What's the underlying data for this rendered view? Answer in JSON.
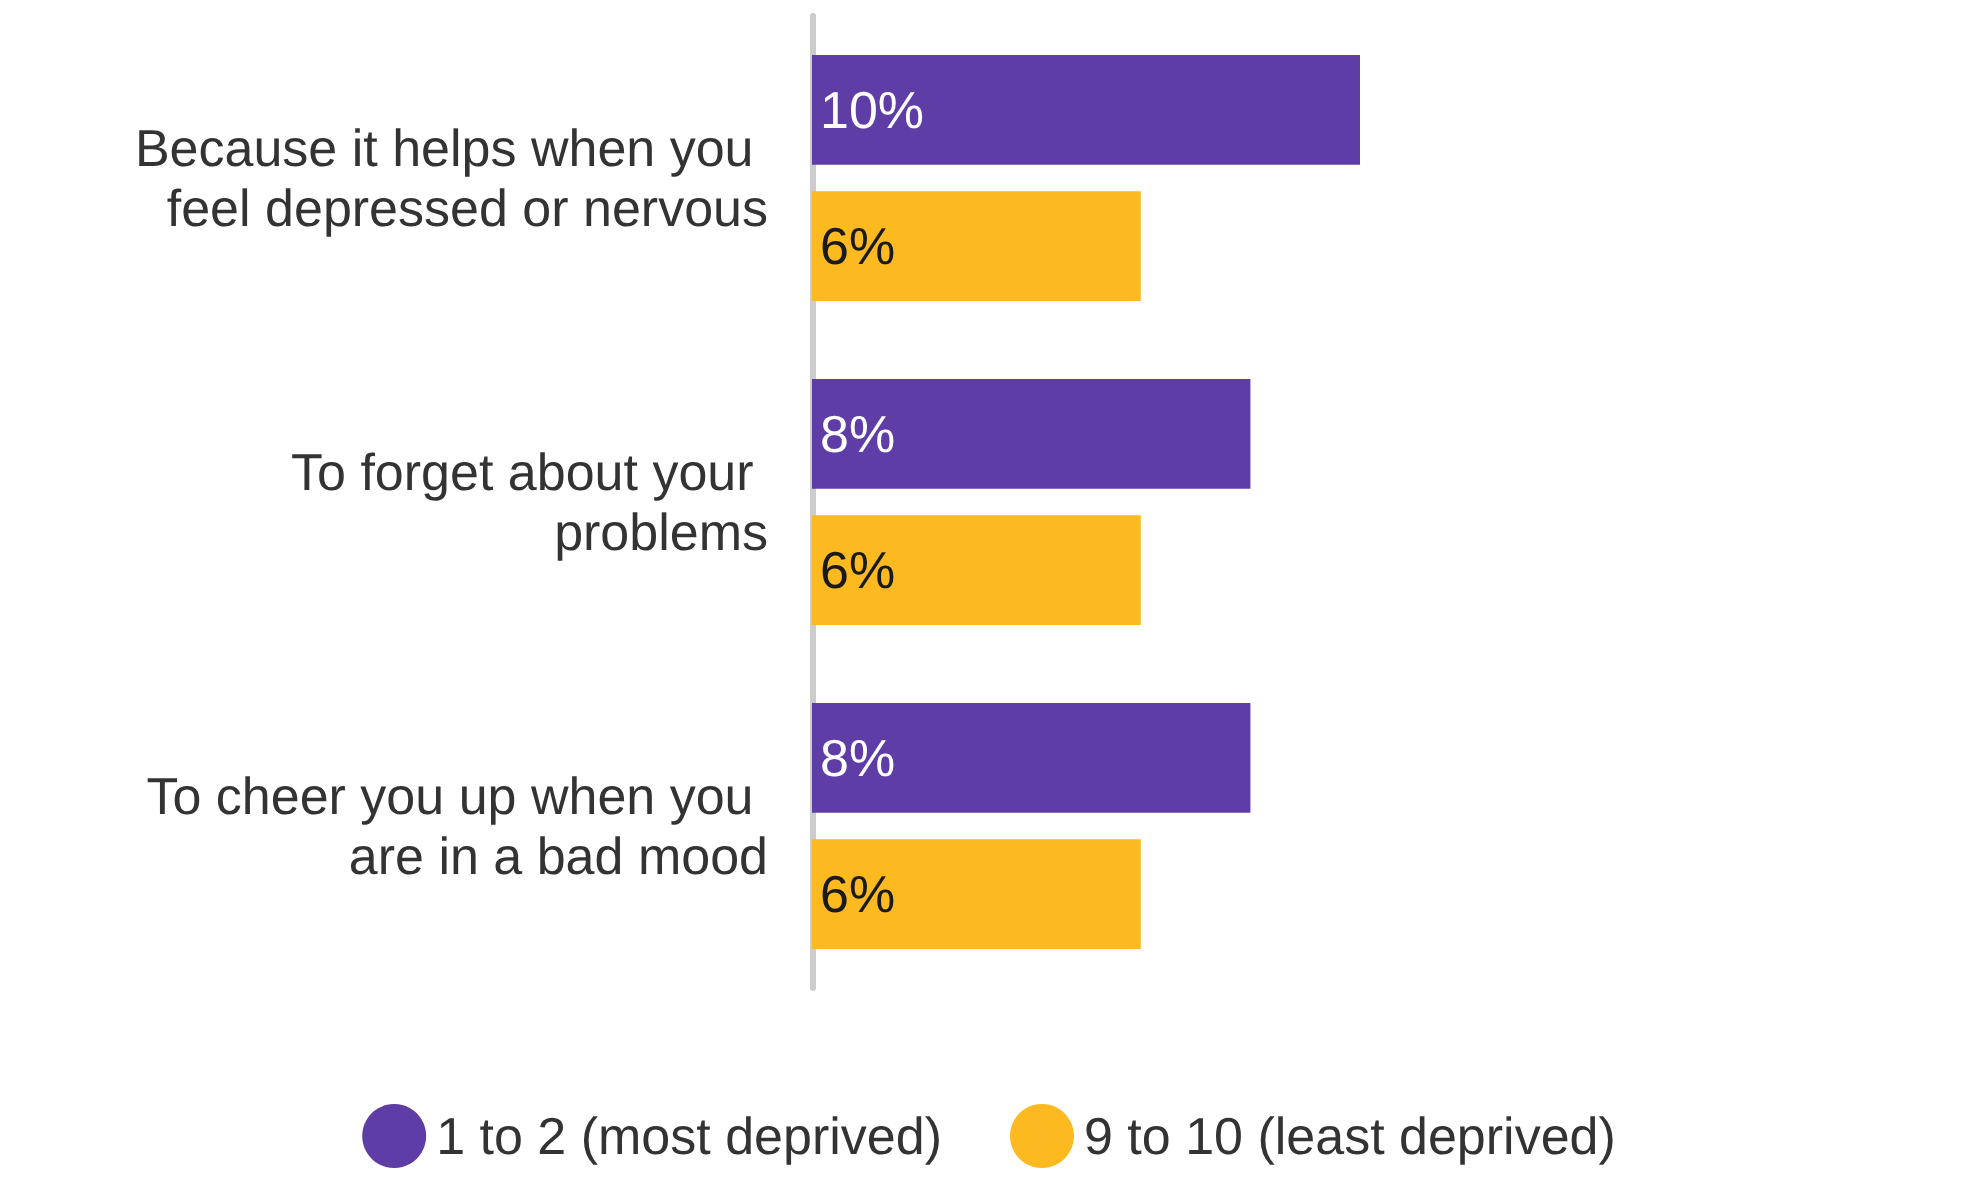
{
  "chart_data": {
    "type": "bar",
    "orientation": "horizontal",
    "categories": [
      "Because it helps when you feel depressed or nervous",
      "To forget about your problems",
      "To cheer you up when you are in a bad mood"
    ],
    "series": [
      {
        "name": "1 to 2 (most deprived)",
        "color": "#5f3da6",
        "values": [
          10,
          8,
          8
        ],
        "value_labels": [
          "10%",
          "8%",
          "8%"
        ]
      },
      {
        "name": "9 to 10 (least deprived)",
        "color": "#fdb920",
        "values": [
          6,
          6,
          6
        ],
        "value_labels": [
          "6%",
          "6%",
          "6%"
        ]
      }
    ],
    "legend": "bottom",
    "tick_labels": "y"
  }
}
